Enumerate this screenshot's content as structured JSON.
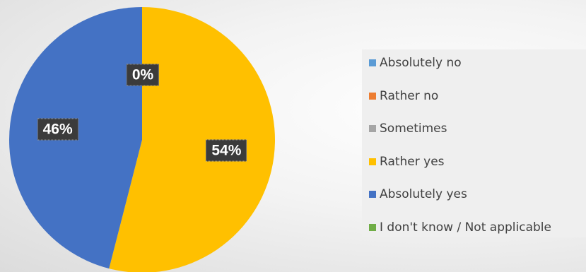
{
  "chart_data": {
    "type": "pie",
    "categories": [
      "Absolutely no",
      "Rather no",
      "Sometimes",
      "Rather yes",
      "Absolutely yes",
      "I don't know / Not applicable"
    ],
    "values": [
      0,
      0,
      0,
      54,
      46,
      0
    ],
    "colors": [
      "#5b9bd5",
      "#ed7d31",
      "#a5a5a5",
      "#ffc000",
      "#4472c4",
      "#70ad47"
    ],
    "data_labels": [
      {
        "category": "Absolutely no",
        "text": "0%"
      },
      {
        "category": "Rather yes",
        "text": "54%"
      },
      {
        "category": "Absolutely yes",
        "text": "46%"
      }
    ],
    "legend_position": "right",
    "title": ""
  }
}
